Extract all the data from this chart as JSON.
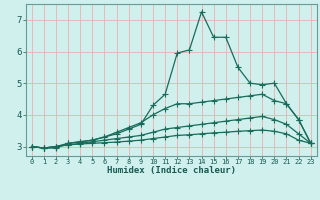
{
  "xlabel": "Humidex (Indice chaleur)",
  "bg_color": "#cff0ec",
  "grid_color": "#e8b8b8",
  "line_color": "#1a6b5a",
  "spine_color": "#6a9a94",
  "tick_color": "#1a5a52",
  "xlim": [
    -0.5,
    23.5
  ],
  "ylim": [
    2.7,
    7.5
  ],
  "yticks": [
    3,
    4,
    5,
    6,
    7
  ],
  "xticks": [
    0,
    1,
    2,
    3,
    4,
    5,
    6,
    7,
    8,
    9,
    10,
    11,
    12,
    13,
    14,
    15,
    16,
    17,
    18,
    19,
    20,
    21,
    22,
    23
  ],
  "line1_x": [
    0,
    1,
    2,
    3,
    4,
    5,
    6,
    7,
    8,
    9,
    10,
    11,
    12,
    13,
    14,
    15,
    16,
    17,
    18,
    19,
    20,
    21,
    22,
    23
  ],
  "line1_y": [
    3.0,
    2.95,
    2.95,
    3.1,
    3.15,
    3.2,
    3.3,
    3.4,
    3.55,
    3.7,
    4.3,
    4.65,
    5.95,
    6.05,
    7.25,
    6.45,
    6.45,
    5.5,
    5.0,
    4.95,
    5.0,
    4.35,
    3.85,
    3.1
  ],
  "line2_x": [
    0,
    1,
    2,
    3,
    4,
    5,
    6,
    7,
    8,
    9,
    10,
    11,
    12,
    13,
    14,
    15,
    16,
    17,
    18,
    19,
    20,
    21,
    22,
    23
  ],
  "line2_y": [
    3.0,
    2.95,
    3.0,
    3.1,
    3.15,
    3.2,
    3.3,
    3.45,
    3.6,
    3.75,
    4.0,
    4.2,
    4.35,
    4.35,
    4.4,
    4.45,
    4.5,
    4.55,
    4.6,
    4.65,
    4.45,
    4.35,
    3.85,
    3.1
  ],
  "line3_x": [
    0,
    1,
    2,
    3,
    4,
    5,
    6,
    7,
    8,
    9,
    10,
    11,
    12,
    13,
    14,
    15,
    16,
    17,
    18,
    19,
    20,
    21,
    22,
    23
  ],
  "line3_y": [
    3.0,
    2.95,
    3.0,
    3.05,
    3.1,
    3.15,
    3.2,
    3.25,
    3.3,
    3.35,
    3.45,
    3.55,
    3.6,
    3.65,
    3.7,
    3.75,
    3.8,
    3.85,
    3.9,
    3.95,
    3.85,
    3.7,
    3.4,
    3.1
  ],
  "line4_x": [
    0,
    1,
    2,
    3,
    4,
    5,
    6,
    7,
    8,
    9,
    10,
    11,
    12,
    13,
    14,
    15,
    16,
    17,
    18,
    19,
    20,
    21,
    22,
    23
  ],
  "line4_y": [
    3.0,
    2.95,
    3.0,
    3.05,
    3.08,
    3.1,
    3.12,
    3.14,
    3.17,
    3.2,
    3.25,
    3.3,
    3.35,
    3.37,
    3.4,
    3.43,
    3.45,
    3.48,
    3.5,
    3.52,
    3.48,
    3.4,
    3.2,
    3.1
  ]
}
